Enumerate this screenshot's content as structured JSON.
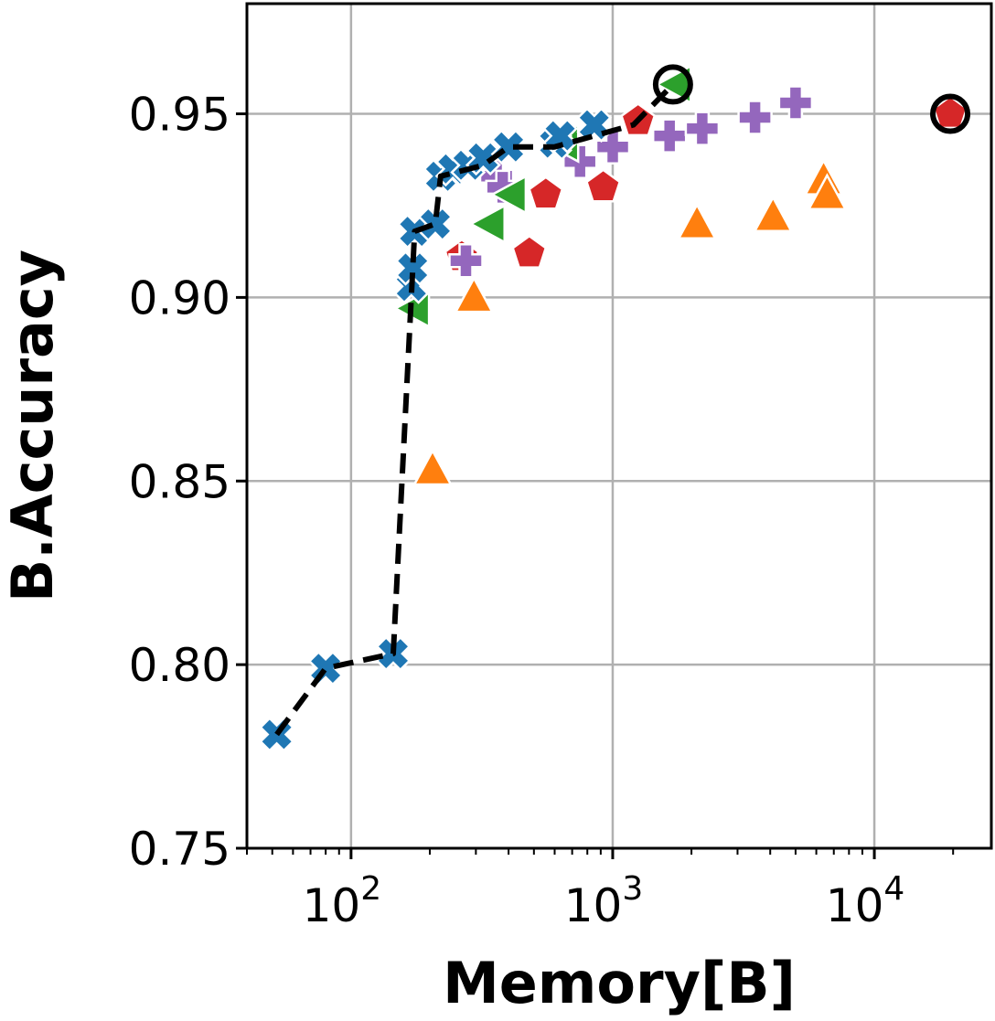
{
  "chart_data": {
    "type": "scatter",
    "title": "",
    "xlabel": "Memory[B]",
    "ylabel": "B.Accuracy",
    "xscale": "log",
    "xlim": [
      40,
      28000
    ],
    "ylim": [
      0.75,
      0.98
    ],
    "grid": true,
    "legend": "none",
    "x_ticks": [
      {
        "value": 100,
        "base": "10",
        "exp": "2"
      },
      {
        "value": 1000,
        "base": "10",
        "exp": "3"
      },
      {
        "value": 10000,
        "base": "10",
        "exp": "4"
      }
    ],
    "y_ticks": [
      {
        "value": 0.75,
        "label": "0.75"
      },
      {
        "value": 0.8,
        "label": "0.80"
      },
      {
        "value": 0.85,
        "label": "0.85"
      },
      {
        "value": 0.9,
        "label": "0.90"
      },
      {
        "value": 0.95,
        "label": "0.95"
      }
    ],
    "series": [
      {
        "marker": "triangle-up",
        "color": "#ff7f0e",
        "points": [
          [
            205,
            0.853
          ],
          [
            295,
            0.9
          ],
          [
            2100,
            0.92
          ],
          [
            4100,
            0.922
          ],
          [
            6400,
            0.932
          ],
          [
            6600,
            0.928
          ]
        ]
      },
      {
        "marker": "pentagon",
        "color": "#d62728",
        "points": [
          [
            265,
            0.911
          ],
          [
            480,
            0.912
          ],
          [
            555,
            0.928
          ],
          [
            920,
            0.93
          ],
          [
            1250,
            0.948
          ],
          [
            19500,
            0.95
          ]
        ]
      },
      {
        "marker": "plus",
        "color": "#9467bd",
        "points": [
          [
            275,
            0.91
          ],
          [
            360,
            0.933
          ],
          [
            380,
            0.93
          ],
          [
            750,
            0.937
          ],
          [
            1000,
            0.941
          ],
          [
            1650,
            0.944
          ],
          [
            2200,
            0.946
          ],
          [
            3500,
            0.949
          ],
          [
            5000,
            0.953
          ]
        ]
      },
      {
        "marker": "triangle-left",
        "color": "#2ca02c",
        "points": [
          [
            175,
            0.897
          ],
          [
            340,
            0.92
          ],
          [
            410,
            0.928
          ],
          [
            650,
            0.942
          ],
          [
            1750,
            0.958
          ]
        ]
      },
      {
        "marker": "x",
        "color": "#1f77b4",
        "points": [
          [
            52,
            0.781
          ],
          [
            80,
            0.799
          ],
          [
            145,
            0.803
          ],
          [
            170,
            0.903
          ],
          [
            172,
            0.908
          ],
          [
            175,
            0.918
          ],
          [
            210,
            0.92
          ],
          [
            220,
            0.933
          ],
          [
            245,
            0.935
          ],
          [
            280,
            0.936
          ],
          [
            320,
            0.938
          ],
          [
            400,
            0.941
          ],
          [
            600,
            0.942
          ],
          [
            630,
            0.944
          ],
          [
            850,
            0.947
          ]
        ]
      }
    ],
    "pareto_front": {
      "color": "#000000",
      "points": [
        [
          52,
          0.781
        ],
        [
          80,
          0.799
        ],
        [
          145,
          0.803
        ],
        [
          175,
          0.918
        ],
        [
          210,
          0.92
        ],
        [
          220,
          0.933
        ],
        [
          320,
          0.936
        ],
        [
          400,
          0.941
        ],
        [
          600,
          0.941
        ],
        [
          1200,
          0.947
        ],
        [
          1700,
          0.958
        ]
      ]
    },
    "highlighted": [
      [
        1700,
        0.958
      ],
      [
        19500,
        0.95
      ]
    ]
  }
}
